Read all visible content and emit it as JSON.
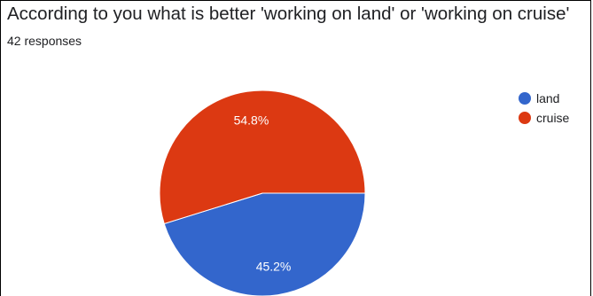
{
  "header": {
    "title": "According to you what is better 'working on land' or 'working on cruise'",
    "subtitle": "42 responses"
  },
  "colors": {
    "land": "#3366cc",
    "cruise": "#dc3912",
    "background": "#ffffff"
  },
  "chart_data": {
    "type": "pie",
    "title": "According to you what is better 'working on land' or 'working on cruise'",
    "categories": [
      "land",
      "cruise"
    ],
    "values": [
      45.2,
      54.8
    ],
    "labels": [
      "45.2%",
      "54.8%"
    ],
    "colors": [
      "#3366cc",
      "#dc3912"
    ],
    "legend_position": "right"
  }
}
